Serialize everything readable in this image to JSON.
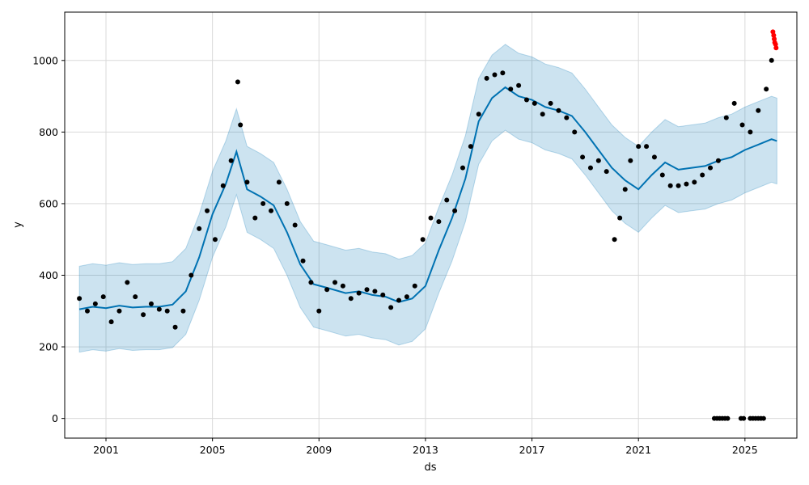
{
  "chart_data": {
    "type": "line",
    "xlabel": "ds",
    "ylabel": "y",
    "xlim": [
      1999.45,
      2026.95
    ],
    "ylim": [
      -55,
      1135
    ],
    "grid": true,
    "x_ticks": [
      2001,
      2005,
      2009,
      2013,
      2017,
      2021,
      2025
    ],
    "x_tick_labels": [
      "2001",
      "2005",
      "2009",
      "2013",
      "2017",
      "2021",
      "2025"
    ],
    "y_ticks": [
      0,
      200,
      400,
      600,
      800,
      1000
    ],
    "y_tick_labels": [
      "0",
      "200",
      "400",
      "600",
      "800",
      "1000"
    ],
    "series": [
      {
        "kind": "forecast_line",
        "color": "#0072B2",
        "x": [
          2000.0,
          2000.5,
          2001.0,
          2001.5,
          2002.0,
          2002.5,
          2003.0,
          2003.5,
          2004.0,
          2004.5,
          2005.0,
          2005.5,
          2005.9,
          2006.3,
          2006.8,
          2007.3,
          2007.8,
          2008.3,
          2008.8,
          2009.3,
          2010.0,
          2010.5,
          2011.0,
          2011.5,
          2012.0,
          2012.5,
          2013.0,
          2013.5,
          2014.0,
          2014.5,
          2015.0,
          2015.5,
          2016.0,
          2016.5,
          2017.0,
          2017.5,
          2018.0,
          2018.5,
          2019.0,
          2019.5,
          2020.0,
          2020.5,
          2021.0,
          2021.5,
          2022.0,
          2022.5,
          2023.0,
          2023.5,
          2024.0,
          2024.5,
          2025.0,
          2025.5,
          2026.0,
          2026.2
        ],
        "y": [
          305,
          312,
          308,
          315,
          310,
          312,
          312,
          318,
          355,
          450,
          570,
          655,
          745,
          640,
          620,
          595,
          520,
          430,
          375,
          365,
          350,
          355,
          345,
          340,
          325,
          335,
          370,
          470,
          560,
          670,
          830,
          895,
          925,
          900,
          890,
          870,
          860,
          845,
          800,
          750,
          700,
          665,
          640,
          680,
          715,
          695,
          700,
          705,
          720,
          730,
          750,
          765,
          780,
          775
        ]
      },
      {
        "kind": "uncertainty_band",
        "color": "#0072B2",
        "upper_offset": 120,
        "lower_offset": 120
      },
      {
        "kind": "observed_points",
        "color": "#000000",
        "x": [
          2000.0,
          2000.3,
          2000.6,
          2000.9,
          2001.2,
          2001.5,
          2001.8,
          2002.1,
          2002.4,
          2002.7,
          2003.0,
          2003.3,
          2003.6,
          2003.9,
          2004.2,
          2004.5,
          2004.8,
          2005.1,
          2005.4,
          2005.7,
          2005.95,
          2006.05,
          2006.3,
          2006.6,
          2006.9,
          2007.2,
          2007.5,
          2007.8,
          2008.1,
          2008.4,
          2008.7,
          2009.0,
          2009.3,
          2009.6,
          2009.9,
          2010.2,
          2010.5,
          2010.8,
          2011.1,
          2011.4,
          2011.7,
          2012.0,
          2012.3,
          2012.6,
          2012.9,
          2013.2,
          2013.5,
          2013.8,
          2014.1,
          2014.4,
          2014.7,
          2015.0,
          2015.3,
          2015.6,
          2015.9,
          2016.2,
          2016.5,
          2016.8,
          2017.1,
          2017.4,
          2017.7,
          2018.0,
          2018.3,
          2018.6,
          2018.9,
          2019.2,
          2019.5,
          2019.8,
          2020.1,
          2020.3,
          2020.5,
          2020.7,
          2021.0,
          2021.3,
          2021.6,
          2021.9,
          2022.2,
          2022.5,
          2022.8,
          2023.1,
          2023.4,
          2023.7,
          2024.0,
          2024.3,
          2024.6,
          2024.9,
          2025.2,
          2025.5,
          2025.8,
          2026.0
        ],
        "y": [
          335,
          300,
          320,
          340,
          270,
          300,
          380,
          340,
          290,
          320,
          305,
          300,
          255,
          300,
          400,
          530,
          580,
          500,
          650,
          720,
          940,
          820,
          660,
          560,
          600,
          580,
          660,
          600,
          540,
          440,
          380,
          300,
          360,
          380,
          370,
          335,
          350,
          360,
          355,
          345,
          310,
          330,
          340,
          370,
          500,
          560,
          550,
          610,
          580,
          700,
          760,
          850,
          950,
          960,
          965,
          920,
          930,
          890,
          880,
          850,
          880,
          860,
          840,
          800,
          730,
          700,
          720,
          690,
          500,
          560,
          640,
          720,
          760,
          760,
          730,
          680,
          650,
          650,
          655,
          660,
          680,
          700,
          720,
          840,
          880,
          820,
          800,
          860,
          920,
          1000
        ]
      },
      {
        "kind": "observed_zero_points",
        "color": "#000000",
        "x": [
          2023.85,
          2023.95,
          2024.05,
          2024.15,
          2024.25,
          2024.35,
          2024.85,
          2024.95,
          2025.2,
          2025.3,
          2025.4,
          2025.5,
          2025.6,
          2025.7
        ],
        "y": [
          0,
          0,
          0,
          0,
          0,
          0,
          0,
          0,
          0,
          0,
          0,
          0,
          0,
          0
        ]
      },
      {
        "kind": "highlighted_points",
        "color": "#FF0000",
        "x": [
          2026.05,
          2026.08,
          2026.1,
          2026.12,
          2026.15,
          2026.17
        ],
        "y": [
          1080,
          1070,
          1060,
          1050,
          1045,
          1035
        ]
      }
    ]
  }
}
